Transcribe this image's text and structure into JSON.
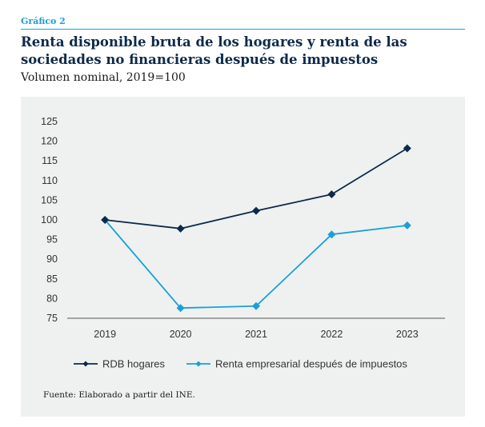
{
  "header": {
    "kicker": "Gráfico 2",
    "title": "Renta disponible bruta de los hogares y renta de las sociedades no financieras después de impuestos",
    "subtitle": "Volumen nominal, 2019=100"
  },
  "source": "Fuente: Elaborado a partir del INE.",
  "chart_data": {
    "type": "line",
    "x": [
      "2019",
      "2020",
      "2021",
      "2022",
      "2023"
    ],
    "ylim": [
      75,
      125
    ],
    "yticks": [
      75,
      80,
      85,
      90,
      95,
      100,
      105,
      110,
      115,
      120,
      125
    ],
    "grid": false,
    "legend_position": "bottom",
    "series": [
      {
        "name": "RDB hogares",
        "color": "#0d2a4a",
        "marker": "diamond",
        "values": [
          100,
          97.8,
          102.3,
          106.5,
          118.2
        ]
      },
      {
        "name": "Renta empresarial después de impuestos",
        "color": "#1aa0d8",
        "marker": "diamond",
        "values": [
          100,
          77.6,
          78.1,
          96.3,
          98.6
        ]
      }
    ]
  }
}
